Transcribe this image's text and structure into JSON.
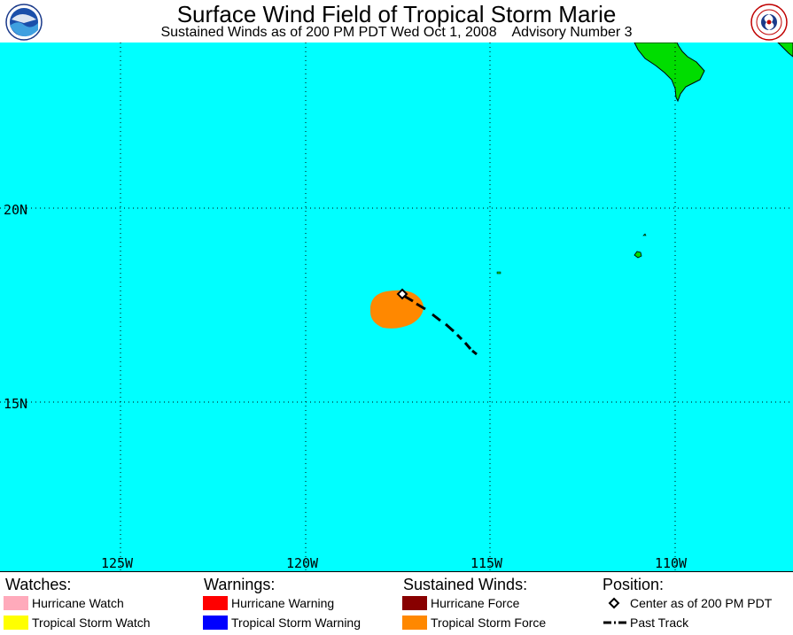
{
  "header": {
    "title": "Surface Wind Field of Tropical Storm Marie",
    "subtitle": "Sustained Winds as of 200 PM PDT Wed Oct 1, 2008    Advisory Number 3",
    "left_logo": "noaa-logo",
    "right_logo": "national-weather-service-logo"
  },
  "map": {
    "ocean_color": "#00ffff",
    "land_color": "#00dd00",
    "tropical_storm_force_color": "#ff8800",
    "lat_labels": [
      "20N",
      "15N"
    ],
    "lon_labels": [
      "125W",
      "120W",
      "115W",
      "110W"
    ],
    "storm_center": {
      "lat": 17.8,
      "lon": -117.2
    },
    "past_track": [
      {
        "lat": 17.8,
        "lon": -117.2
      },
      {
        "lat": 17.2,
        "lon": -116.5
      },
      {
        "lat": 16.7,
        "lon": -115.8
      },
      {
        "lat": 16.3,
        "lon": -115.3
      }
    ]
  },
  "legend": {
    "watches": {
      "heading": "Watches:",
      "items": [
        {
          "label": "Hurricane Watch",
          "color": "#ffaabb"
        },
        {
          "label": "Tropical Storm Watch",
          "color": "#ffff00"
        }
      ]
    },
    "warnings": {
      "heading": "Warnings:",
      "items": [
        {
          "label": "Hurricane Warning",
          "color": "#ff0000"
        },
        {
          "label": "Tropical Storm Warning",
          "color": "#0000ff"
        }
      ]
    },
    "winds": {
      "heading": "Sustained Winds:",
      "items": [
        {
          "label": "Hurricane Force",
          "color": "#880000"
        },
        {
          "label": "Tropical Storm Force",
          "color": "#ff8800"
        }
      ]
    },
    "position": {
      "heading": "Position:",
      "items": [
        {
          "label": "Center as of 200 PM PDT",
          "icon": "diamond-icon"
        },
        {
          "label": "Past Track",
          "icon": "dashed-line-icon"
        }
      ]
    }
  }
}
